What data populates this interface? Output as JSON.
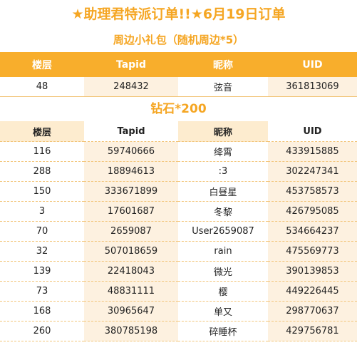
{
  "title": "★助理君特派订单!!★6月19日订单",
  "section1": {
    "heading": "周边小礼包（随机周边*5）",
    "columns": [
      "楼层",
      "Tapid",
      "昵称",
      "UID"
    ],
    "rows": [
      [
        "48",
        "248432",
        "弦音",
        "361813069"
      ]
    ]
  },
  "section2": {
    "heading": "钻石*200",
    "columns": [
      "楼层",
      "Tapid",
      "昵称",
      "UID"
    ],
    "rows": [
      [
        "116",
        "59740666",
        "绛霄",
        "433915885"
      ],
      [
        "288",
        "18894613",
        ":3",
        "302247341"
      ],
      [
        "150",
        "333671899",
        "白昼星",
        "453758573"
      ],
      [
        "3",
        "17601687",
        "冬黎",
        "426795085"
      ],
      [
        "70",
        "2659087",
        "User2659087",
        "534664237"
      ],
      [
        "32",
        "507018659",
        "rain",
        "475569773"
      ],
      [
        "139",
        "22418043",
        "微光",
        "390139853"
      ],
      [
        "73",
        "48831111",
        "樱",
        "449226445"
      ],
      [
        "168",
        "30965647",
        "单又",
        "298770637"
      ],
      [
        "260",
        "380785198",
        "碎睡杯",
        "429756781"
      ]
    ]
  },
  "colors": {
    "accent": "#f8ae2c",
    "title": "#f5a623",
    "stripe": "#fdf1e0",
    "header2": "#fdeccf"
  }
}
